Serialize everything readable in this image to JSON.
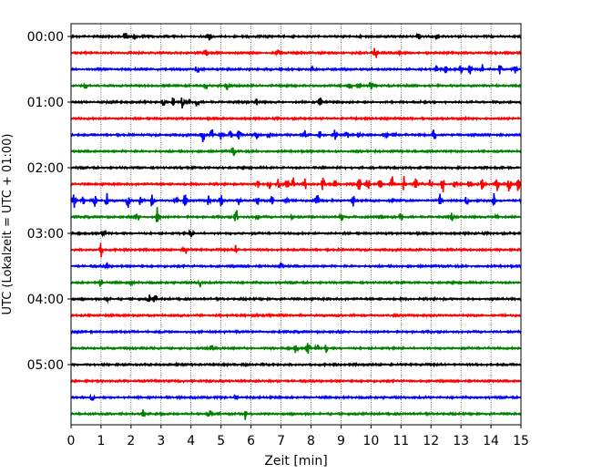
{
  "chart_data": {
    "type": "line",
    "xlabel": "Zeit  [min]",
    "ylabel": "UTC (Lokalzeit = UTC + 01:00)",
    "xlim": [
      0,
      15
    ],
    "x_ticks": [
      "0",
      "1",
      "2",
      "3",
      "4",
      "5",
      "6",
      "7",
      "8",
      "9",
      "10",
      "11",
      "12",
      "13",
      "14",
      "15"
    ],
    "y_ticks": [
      {
        "label": "00:00",
        "trace": 0
      },
      {
        "label": "01:00",
        "trace": 4
      },
      {
        "label": "02:00",
        "trace": 8
      },
      {
        "label": "03:00",
        "trace": 12
      },
      {
        "label": "04:00",
        "trace": 16
      },
      {
        "label": "05:00",
        "trace": 20
      }
    ],
    "grid": "vertical-dotted",
    "trace_count": 24,
    "trace_interval_min": 15,
    "colors": [
      "#000000",
      "#ff0000",
      "#0000ff",
      "#008000"
    ],
    "events": [
      [
        [
          1.8,
          1.2
        ],
        [
          2.1,
          1.0
        ],
        [
          4.6,
          0.8
        ],
        [
          11.6,
          0.8
        ],
        [
          12.2,
          0.9
        ]
      ],
      [
        [
          4.5,
          0.8
        ],
        [
          6.9,
          0.8
        ],
        [
          10.15,
          1.4
        ],
        [
          11.0,
          0.6
        ]
      ],
      [
        [
          4.2,
          0.8
        ],
        [
          8.0,
          0.8
        ],
        [
          12.2,
          1.0
        ],
        [
          12.5,
          0.8
        ],
        [
          13.0,
          1.0
        ],
        [
          13.3,
          0.9
        ],
        [
          13.7,
          1.0
        ],
        [
          14.3,
          0.9
        ],
        [
          14.8,
          0.8
        ]
      ],
      [
        [
          0.5,
          0.8
        ],
        [
          4.5,
          0.8
        ],
        [
          5.2,
          0.8
        ],
        [
          9.3,
          1.0
        ],
        [
          9.6,
          0.8
        ],
        [
          10.0,
          0.8
        ]
      ],
      [
        [
          3.1,
          1.2
        ],
        [
          3.4,
          1.0
        ],
        [
          3.7,
          1.2
        ],
        [
          3.9,
          1.0
        ],
        [
          4.2,
          1.1
        ],
        [
          6.2,
          0.8
        ],
        [
          8.3,
          0.8
        ]
      ],
      [],
      [
        [
          4.4,
          1.5
        ],
        [
          4.7,
          1.2
        ],
        [
          5.0,
          1.2
        ],
        [
          5.3,
          1.2
        ],
        [
          5.6,
          1.0
        ],
        [
          6.2,
          0.8
        ],
        [
          6.6,
          0.8
        ],
        [
          7.8,
          0.8
        ],
        [
          8.3,
          0.9
        ],
        [
          8.8,
          1.0
        ],
        [
          9.2,
          0.9
        ],
        [
          9.6,
          0.8
        ],
        [
          10.5,
          0.8
        ],
        [
          10.8,
          0.8
        ],
        [
          12.1,
          1.6
        ]
      ],
      [
        [
          5.4,
          1.0
        ]
      ],
      [],
      [
        [
          6.2,
          1.4
        ],
        [
          6.6,
          1.3
        ],
        [
          6.9,
          1.3
        ],
        [
          7.2,
          1.2
        ],
        [
          7.4,
          1.3
        ],
        [
          7.8,
          1.2
        ],
        [
          8.4,
          1.5
        ],
        [
          8.8,
          1.2
        ],
        [
          9.6,
          1.8
        ],
        [
          9.9,
          1.4
        ],
        [
          10.3,
          1.3
        ],
        [
          10.7,
          1.8
        ],
        [
          11.1,
          1.4
        ],
        [
          11.5,
          1.4
        ],
        [
          12.0,
          1.6
        ],
        [
          12.4,
          1.5
        ],
        [
          12.8,
          1.2
        ],
        [
          13.3,
          1.2
        ],
        [
          13.7,
          1.2
        ],
        [
          14.2,
          1.4
        ],
        [
          14.6,
          1.3
        ],
        [
          14.9,
          1.8
        ]
      ],
      [
        [
          0.1,
          1.4
        ],
        [
          0.4,
          1.2
        ],
        [
          0.8,
          1.5
        ],
        [
          1.2,
          1.3
        ],
        [
          1.9,
          1.4
        ],
        [
          2.3,
          1.2
        ],
        [
          2.7,
          1.3
        ],
        [
          3.5,
          1.2
        ],
        [
          3.8,
          1.3
        ],
        [
          4.6,
          1.3
        ],
        [
          5.0,
          1.2
        ],
        [
          5.6,
          1.1
        ],
        [
          6.2,
          1.2
        ],
        [
          6.7,
          1.2
        ],
        [
          7.2,
          1.1
        ],
        [
          8.2,
          1.3
        ],
        [
          9.4,
          1.1
        ],
        [
          10.7,
          1.1
        ],
        [
          12.3,
          1.2
        ],
        [
          13.2,
          1.1
        ],
        [
          14.1,
          1.3
        ]
      ],
      [
        [
          2.2,
          1.3
        ],
        [
          2.9,
          3.2
        ],
        [
          5.5,
          1.8
        ],
        [
          6.2,
          1.0
        ],
        [
          7.4,
          0.8
        ],
        [
          9.0,
          0.9
        ],
        [
          10.3,
          0.8
        ],
        [
          11.0,
          0.8
        ],
        [
          12.7,
          0.8
        ],
        [
          14.2,
          1.0
        ]
      ],
      [
        [
          1.1,
          0.8
        ],
        [
          4.0,
          0.8
        ]
      ],
      [
        [
          1.0,
          1.4
        ],
        [
          3.8,
          1.5
        ],
        [
          5.5,
          0.9
        ]
      ],
      [
        [
          1.2,
          0.7
        ],
        [
          7.0,
          0.7
        ]
      ],
      [
        [
          1.0,
          1.3
        ],
        [
          2.0,
          0.8
        ],
        [
          4.3,
          1.0
        ]
      ],
      [
        [
          1.2,
          0.8
        ],
        [
          2.6,
          0.8
        ],
        [
          2.8,
          0.9
        ]
      ],
      [],
      [],
      [
        [
          4.7,
          0.6
        ],
        [
          7.5,
          1.1
        ],
        [
          7.9,
          1.5
        ],
        [
          8.2,
          0.9
        ],
        [
          8.5,
          0.8
        ]
      ],
      [],
      [],
      [
        [
          0.7,
          0.6
        ],
        [
          5.5,
          0.6
        ]
      ],
      [
        [
          2.4,
          0.7
        ],
        [
          4.6,
          0.8
        ],
        [
          5.8,
          1.2
        ]
      ]
    ]
  }
}
